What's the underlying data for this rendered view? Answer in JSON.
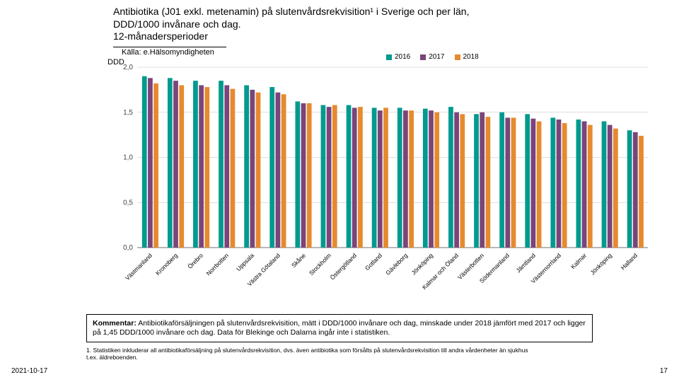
{
  "title": {
    "lines": [
      "Antibiotika (J01 exkl. metenamin) på slutenvårdsrekvisition¹ i Sverige och per län,",
      "DDD/1000 invånare och dag.",
      "12-månadersperioder"
    ],
    "fontsize": 14
  },
  "source": "Källa: e.Hälsomyndigheten",
  "axis_label": "DDD",
  "legend": {
    "items": [
      {
        "label": "2016",
        "color": "#009a8e"
      },
      {
        "label": "2017",
        "color": "#7b447a"
      },
      {
        "label": "2018",
        "color": "#e68a2e"
      }
    ],
    "fontsize": 10
  },
  "chart": {
    "type": "bar-grouped",
    "ylim": [
      0,
      2.0
    ],
    "ytick_step": 0.5,
    "yticks": [
      "0,0",
      "0,5",
      "1,0",
      "1,5",
      "2,0"
    ],
    "background_color": "#ffffff",
    "grid_color": "#bfbfbf",
    "series_colors": [
      "#009a8e",
      "#7b447a",
      "#e68a2e"
    ],
    "bar_group_width": 0.62,
    "bar_inner_gap": 0.02,
    "categories": [
      "Västmanland",
      "Kronoberg",
      "Örebro",
      "Norrbotten",
      "Uppsala",
      "Västra Götaland",
      "Skåne",
      "Stockholm",
      "Östergötland",
      "Gotland",
      "Gävleborg",
      "Jönköping",
      "Kalmar och Öland",
      "Västerbotten",
      "Södermanland",
      "Jämtland",
      "Västernorrland",
      "Kalmar",
      "Jönköping",
      "Halland"
    ],
    "values_2016": [
      1.9,
      1.88,
      1.85,
      1.85,
      1.8,
      1.78,
      1.62,
      1.58,
      1.58,
      1.55,
      1.55,
      1.54,
      1.56,
      1.48,
      1.5,
      1.48,
      1.44,
      1.42,
      1.4,
      1.3
    ],
    "values_2017": [
      1.88,
      1.85,
      1.8,
      1.8,
      1.75,
      1.72,
      1.6,
      1.56,
      1.55,
      1.52,
      1.52,
      1.52,
      1.5,
      1.5,
      1.44,
      1.43,
      1.42,
      1.4,
      1.36,
      1.28
    ],
    "values_2018": [
      1.82,
      1.8,
      1.78,
      1.76,
      1.72,
      1.7,
      1.6,
      1.58,
      1.56,
      1.55,
      1.52,
      1.5,
      1.48,
      1.45,
      1.44,
      1.4,
      1.38,
      1.36,
      1.32,
      1.24
    ]
  },
  "xlabel_fontsize": 8.5,
  "comment": "Antibiotikaförsäljningen på slutenvårdsrekvisition, mätt i DDD/1000 invånare och dag, minskade under 2018 jämfört med 2017 och ligger på 1,45 DDD/1000 invånare och dag. Data för Blekinge och Dalarna ingår inte i statistiken.",
  "comment_label": "Kommentar:",
  "footnote": "1. Statistiken inkluderar all antibiotikaförsäljning på slutenvårdsrekvisition, dvs. även antibiotika som försålts på slutenvårdsrekvisition till andra vårdenheter än sjukhus t.ex. äldreboenden.",
  "date": "2021-10-17",
  "page_number": "17"
}
